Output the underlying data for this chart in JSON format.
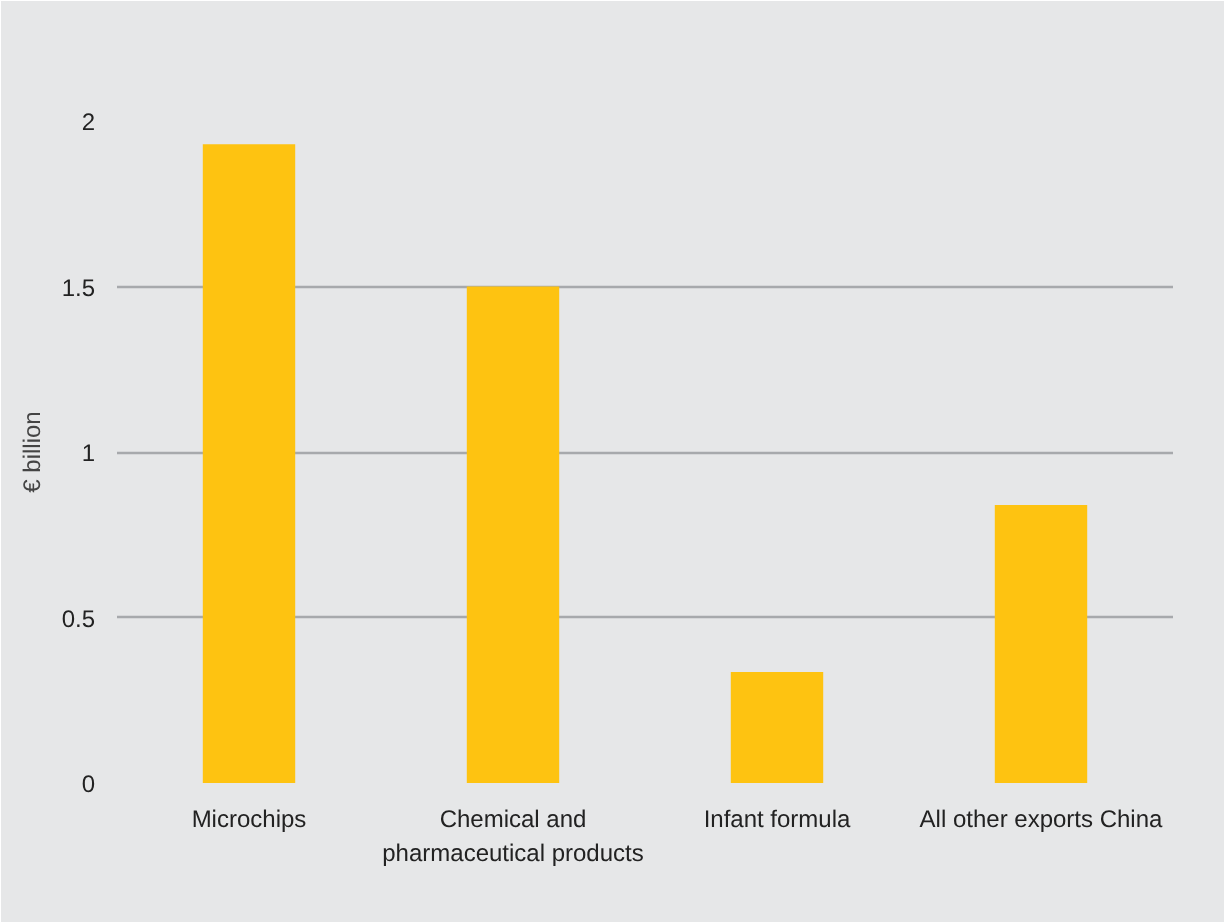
{
  "chart_data": {
    "type": "bar",
    "ylabel": "€ billion",
    "categories": [
      "Microchips",
      "Chemical and\npharmaceutical products",
      "Infant formula",
      "All other exports China"
    ],
    "values": [
      1.93,
      1.5,
      0.335,
      0.84
    ],
    "color": "#fec311",
    "ylim": [
      0,
      2
    ],
    "yticks": [
      {
        "value": 0,
        "label": "0"
      },
      {
        "value": 0.5,
        "label": "0.5"
      },
      {
        "value": 1,
        "label": "1"
      },
      {
        "value": 1.5,
        "label": "1.5"
      },
      {
        "value": 2,
        "label": "2"
      }
    ],
    "grid": "y"
  }
}
